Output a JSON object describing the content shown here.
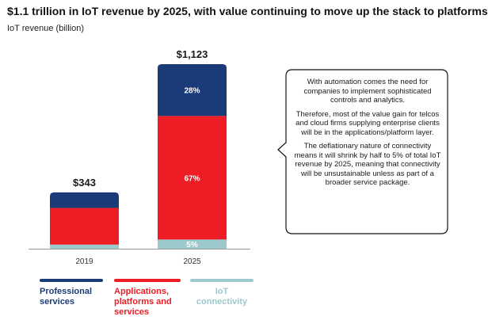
{
  "title": "$1.1 trillion in IoT revenue by 2025, with value continuing to move up the stack to platforms",
  "subtitle": "IoT revenue (billion)",
  "colors": {
    "professional": "#1b3b78",
    "applications": "#ee1c25",
    "connectivity": "#9cc9cb"
  },
  "chart_data": {
    "type": "bar",
    "stacked": true,
    "categories": [
      "2019",
      "2025"
    ],
    "totals": [
      343,
      1123
    ],
    "total_labels": [
      "$343",
      "$1,123"
    ],
    "ylabel": "IoT revenue (billion)",
    "ylim": [
      0,
      1123
    ],
    "grid": false,
    "legend_position": "bottom",
    "series": [
      {
        "name": "IoT connectivity",
        "key": "connectivity",
        "values": [
          25,
          56
        ],
        "labels": [
          "",
          "5%"
        ]
      },
      {
        "name": "Applications, platforms and services",
        "key": "applications",
        "values": [
          223,
          752
        ],
        "labels": [
          "",
          "67%"
        ]
      },
      {
        "name": "Professional services",
        "key": "professional",
        "values": [
          95,
          315
        ],
        "labels": [
          "",
          "28%"
        ]
      }
    ]
  },
  "callout": {
    "paragraphs": [
      "With automation comes the need for companies to implement sophisticated controls and analytics.",
      "Therefore, most of the value gain for telcos and cloud firms supplying enterprise clients will be in the applications/platform layer.",
      "The deflationary nature of connectivity means it will shrink by half to 5% of total IoT revenue by 2025, meaning that connectivity will be unsustainable unless as part of a broader service package."
    ]
  },
  "legend": [
    {
      "key": "professional",
      "label": "Professional services"
    },
    {
      "key": "applications",
      "label": "Applications, platforms and services"
    },
    {
      "key": "connectivity",
      "label": "IoT connectivity"
    }
  ]
}
